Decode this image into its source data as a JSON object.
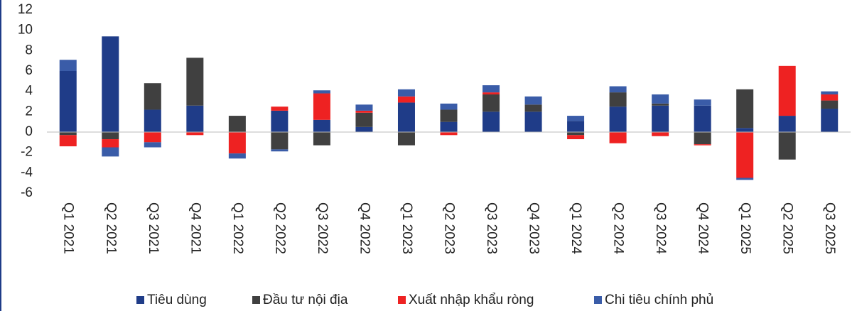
{
  "chart_data": {
    "type": "stacked_bar",
    "categories": [
      "Q1 2021",
      "Q2 2021",
      "Q3 2021",
      "Q4 2021",
      "Q1 2022",
      "Q2 2022",
      "Q3 2022",
      "Q4 2022",
      "Q1 2023",
      "Q2 2023",
      "Q3 2023",
      "Q4 2023",
      "Q1 2024",
      "Q2 2024",
      "Q3 2024",
      "Q4 2024",
      "Q1 2025",
      "Q2 2025",
      "Q3 2025"
    ],
    "series": [
      {
        "name": "Tiêu dùng",
        "color": "#1f3c88",
        "values": [
          6.0,
          9.4,
          2.2,
          2.6,
          0,
          2.1,
          1.2,
          0.5,
          2.9,
          1.0,
          2.0,
          2.0,
          1.1,
          2.5,
          2.6,
          2.6,
          0.4,
          1.6,
          2.3
        ]
      },
      {
        "name": "Đầu tư nội địa",
        "color": "#404040",
        "values": [
          -0.3,
          -0.7,
          2.6,
          4.7,
          1.6,
          -1.7,
          -1.3,
          1.4,
          -1.3,
          1.2,
          1.7,
          0.7,
          -0.3,
          1.4,
          0.2,
          -1.2,
          3.8,
          -2.7,
          0.8
        ]
      },
      {
        "name": "Xuất nhập khẩu ròng",
        "color": "#ee2222",
        "values": [
          -1.1,
          -0.8,
          -1.0,
          -0.3,
          -2.1,
          0.4,
          2.6,
          0.2,
          0.6,
          -0.3,
          0.2,
          0,
          -0.4,
          -1.1,
          -0.4,
          -0.1,
          -4.5,
          4.9,
          0.6
        ]
      },
      {
        "name": "Chi tiêu chính phủ",
        "color": "#3a5ca8",
        "values": [
          1.1,
          -0.9,
          -0.5,
          0,
          -0.5,
          -0.2,
          0.3,
          0.6,
          0.7,
          0.6,
          0.7,
          0.8,
          0.5,
          0.6,
          0.9,
          0.6,
          -0.2,
          0,
          0.3
        ]
      }
    ],
    "ylim": [
      -6,
      12
    ],
    "yticks": [
      -6,
      -4,
      -2,
      0,
      2,
      4,
      6,
      8,
      10,
      12
    ]
  }
}
